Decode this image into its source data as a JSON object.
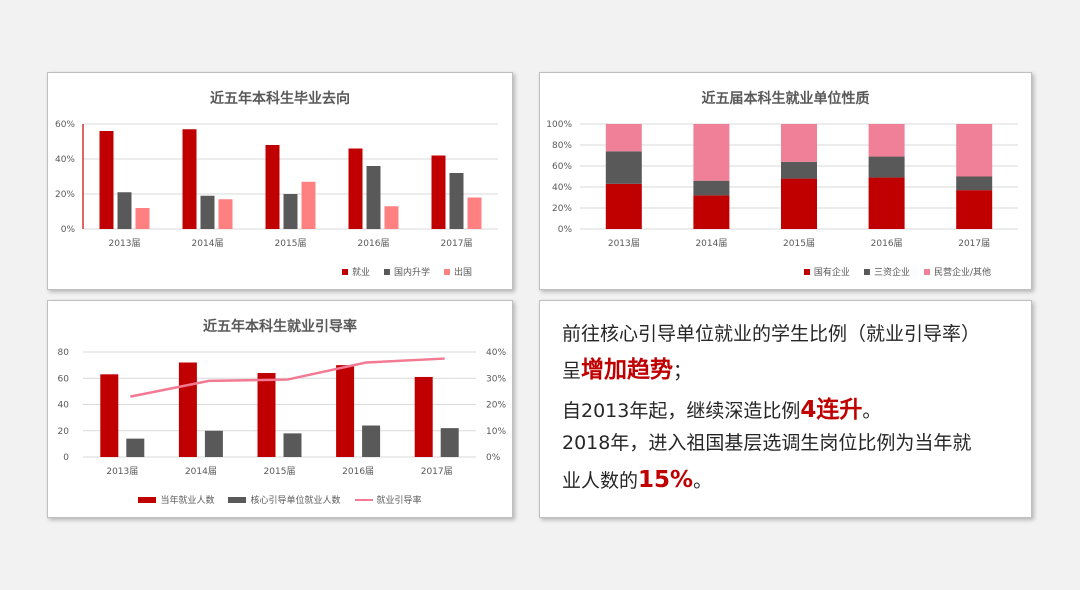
{
  "colors": {
    "red": "#c00000",
    "gray": "#595959",
    "pink": "#ff8080",
    "rose": "#f08098",
    "line": "#f27a93"
  },
  "chart_data": [
    {
      "type": "bar",
      "title": "近五年本科生毕业去向",
      "categories": [
        "2013届",
        "2014届",
        "2015届",
        "2016届",
        "2017届"
      ],
      "ylim": [
        0,
        60
      ],
      "yticks": [
        "0%",
        "20%",
        "40%",
        "60%"
      ],
      "series": [
        {
          "name": "就业",
          "values": [
            56,
            57,
            48,
            46,
            42
          ]
        },
        {
          "name": "国内升学",
          "values": [
            21,
            19,
            20,
            36,
            32
          ]
        },
        {
          "name": "出国",
          "values": [
            12,
            17,
            27,
            13,
            18
          ]
        }
      ],
      "legend": "bottom-right"
    },
    {
      "type": "bar",
      "stacked": true,
      "title": "近五届本科生就业单位性质",
      "categories": [
        "2013届",
        "2014届",
        "2015届",
        "2016届",
        "2017届"
      ],
      "ylim": [
        0,
        100
      ],
      "yticks": [
        "0%",
        "20%",
        "40%",
        "60%",
        "80%",
        "100%"
      ],
      "series": [
        {
          "name": "国有企业",
          "values": [
            43,
            32,
            48,
            49,
            37
          ]
        },
        {
          "name": "三资企业",
          "values": [
            31,
            14,
            16,
            20,
            13
          ]
        },
        {
          "name": "民营企业/其他",
          "values": [
            26,
            54,
            36,
            31,
            50
          ]
        }
      ],
      "legend": "bottom-right"
    },
    {
      "type": "bar",
      "title": "近五年本科生就业引导率",
      "categories": [
        "2013届",
        "2014届",
        "2015届",
        "2016届",
        "2017届"
      ],
      "ylim": [
        0,
        80
      ],
      "yticks": [
        "0",
        "20",
        "40",
        "60",
        "80"
      ],
      "y2lim": [
        0,
        40
      ],
      "y2ticks": [
        "0%",
        "10%",
        "20%",
        "30%",
        "40%"
      ],
      "series": [
        {
          "name": "当年就业人数",
          "values": [
            63,
            72,
            64,
            70,
            61
          ]
        },
        {
          "name": "核心引导单位就业人数",
          "values": [
            14,
            20,
            18,
            24,
            22
          ]
        },
        {
          "name": "就业引导率",
          "type": "line",
          "axis": "right",
          "values": [
            23,
            29,
            29.5,
            36,
            37.5
          ]
        }
      ],
      "legend": "bottom"
    }
  ],
  "summary": {
    "line1": "前往核心引导单位就业的学生比例（就业引导率）",
    "line2_pre": "呈",
    "line2_hl": "增加趋势",
    "line2_post": "；",
    "line3_pre": "自2013年起，继续深造比例",
    "line3_hl": "4连升",
    "line3_post": "。",
    "line4": "2018年，进入祖国基层选调生岗位比例为当年就",
    "line5_pre": "业人数的",
    "line5_hl": "15%",
    "line5_post": "。"
  }
}
